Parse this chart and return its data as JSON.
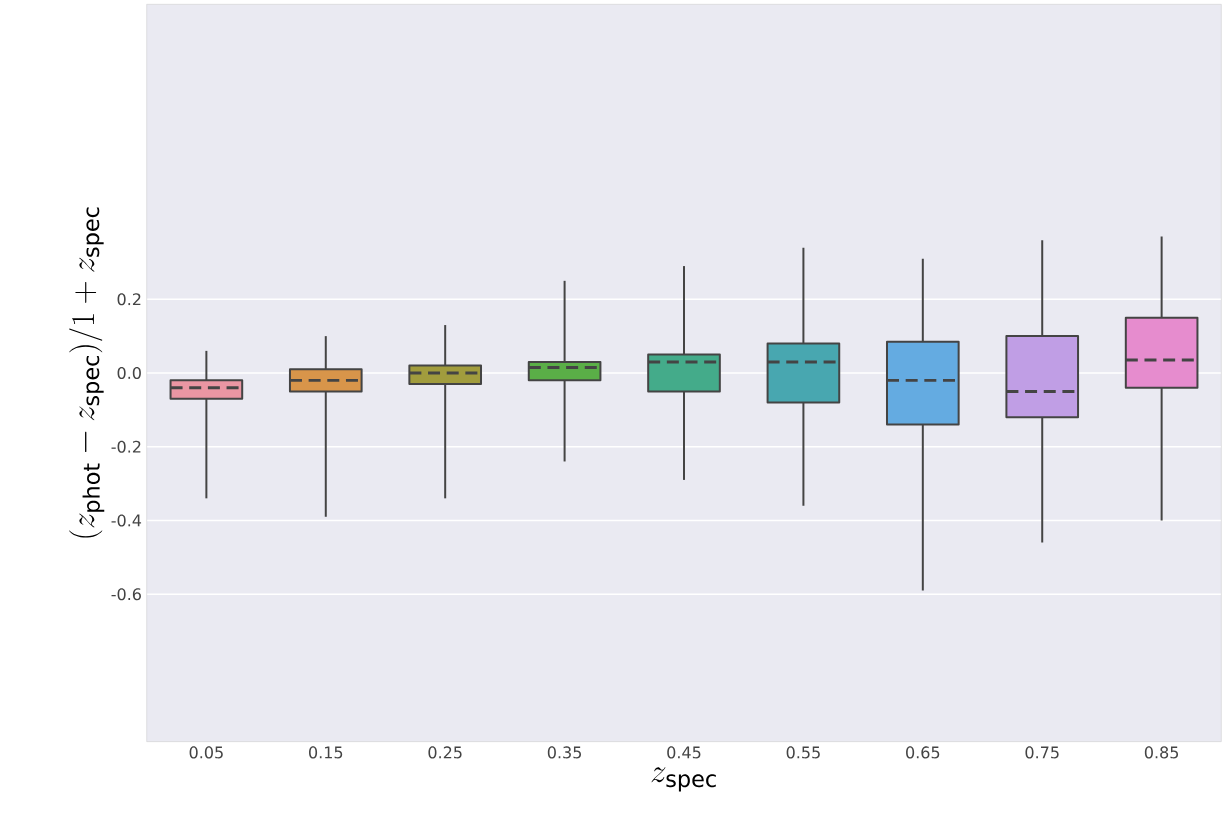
{
  "chart_data": {
    "type": "box",
    "xlabel": "z_{\\mathrm{spec}}",
    "ylabel": "(z_{\\mathrm{phot}} - z_{\\mathrm{spec}})/1+z_{\\mathrm{spec}}",
    "categories": [
      "0.05",
      "0.15",
      "0.25",
      "0.35",
      "0.45",
      "0.55",
      "0.65",
      "0.75",
      "0.85"
    ],
    "colors": [
      "#ea96a3",
      "#d8954a",
      "#a19c3d",
      "#5aae47",
      "#44ab8a",
      "#48a7b0",
      "#64abe1",
      "#c09ee5",
      "#e68cce"
    ],
    "boxes": [
      {
        "low": -0.34,
        "q1": -0.07,
        "median": -0.04,
        "q3": -0.02,
        "high": 0.06
      },
      {
        "low": -0.39,
        "q1": -0.05,
        "median": -0.02,
        "q3": 0.01,
        "high": 0.1
      },
      {
        "low": -0.34,
        "q1": -0.03,
        "median": 0.0,
        "q3": 0.02,
        "high": 0.13
      },
      {
        "low": -0.24,
        "q1": -0.02,
        "median": 0.015,
        "q3": 0.03,
        "high": 0.25
      },
      {
        "low": -0.29,
        "q1": -0.05,
        "median": 0.03,
        "q3": 0.05,
        "high": 0.29
      },
      {
        "low": -0.36,
        "q1": -0.08,
        "median": 0.03,
        "q3": 0.08,
        "high": 0.34
      },
      {
        "low": -0.59,
        "q1": -0.14,
        "median": -0.02,
        "q3": 0.085,
        "high": 0.31
      },
      {
        "low": -0.46,
        "q1": -0.12,
        "median": -0.05,
        "q3": 0.1,
        "high": 0.36
      },
      {
        "low": -0.4,
        "q1": -0.04,
        "median": 0.035,
        "q3": 0.15,
        "high": 0.37
      }
    ],
    "ylim": [
      -1.0,
      1.0
    ],
    "yticks": [
      -0.6,
      -0.4,
      -0.2,
      {
        "value": 0.0,
        "label": "0.0"
      },
      0.2
    ],
    "grid": "y"
  }
}
